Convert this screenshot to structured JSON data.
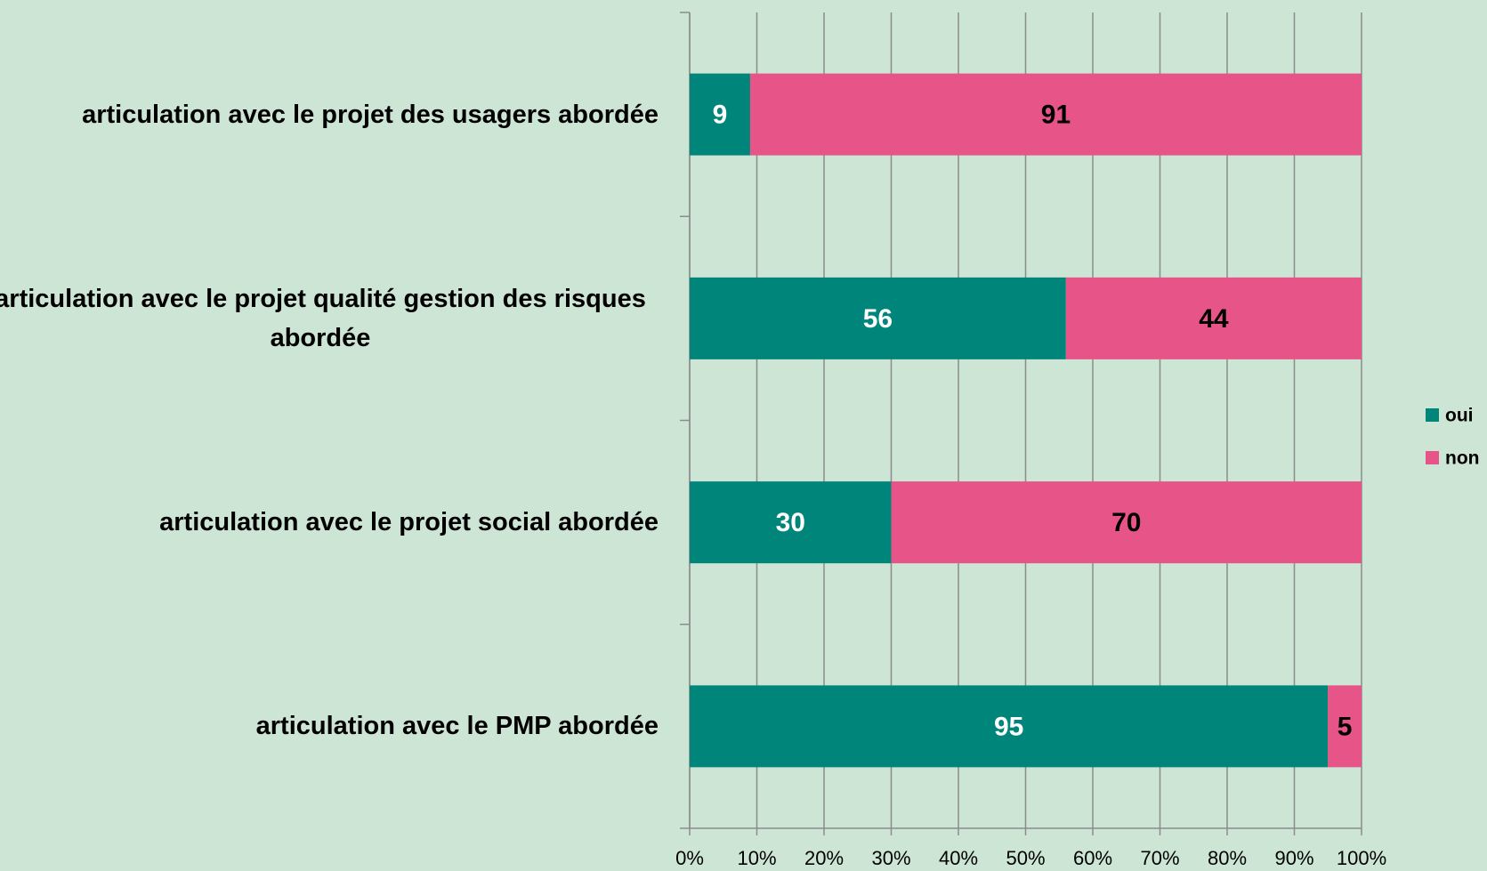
{
  "chart_data": {
    "type": "stacked-barh",
    "categories": [
      "articulation avec le projet des usagers abordée",
      "articulation avec le projet qualité gestion des risques abordée",
      "articulation avec le projet social abordée",
      "articulation avec le PMP abordée"
    ],
    "series": [
      {
        "name": "oui",
        "color": "#00857a",
        "label_color": "#ffffff",
        "values": [
          9,
          56,
          30,
          95
        ]
      },
      {
        "name": "non",
        "color": "#e75487",
        "label_color": "#000000",
        "values": [
          91,
          44,
          70,
          5
        ]
      }
    ],
    "xlim": [
      0,
      100
    ],
    "xticks": [
      {
        "value": 0,
        "label": "0%"
      },
      {
        "value": 10,
        "label": "10%"
      },
      {
        "value": 20,
        "label": "20%"
      },
      {
        "value": 30,
        "label": "30%"
      },
      {
        "value": 40,
        "label": "40%"
      },
      {
        "value": 50,
        "label": "50%"
      },
      {
        "value": 60,
        "label": "60%"
      },
      {
        "value": 70,
        "label": "70%"
      },
      {
        "value": 80,
        "label": "80%"
      },
      {
        "value": 90,
        "label": "90%"
      },
      {
        "value": 100,
        "label": "100%"
      }
    ],
    "grid": true,
    "legend": "right"
  }
}
